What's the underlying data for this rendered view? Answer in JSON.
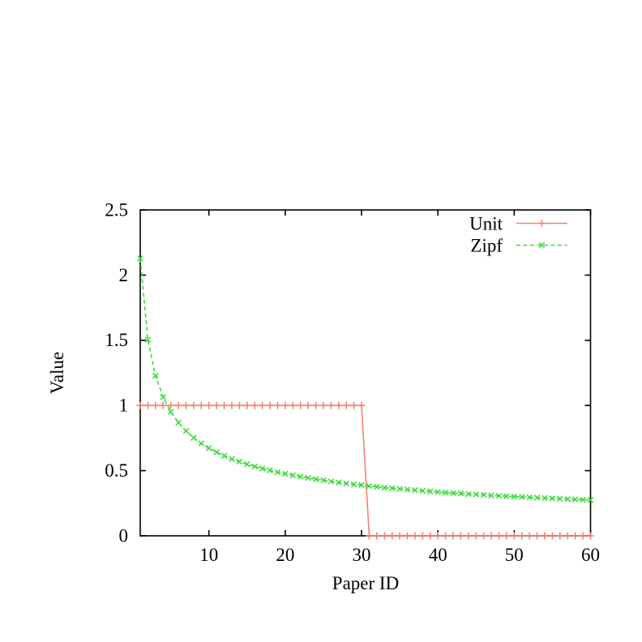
{
  "chart_data": {
    "type": "line",
    "title": "",
    "xlabel": "Paper ID",
    "ylabel": "Value",
    "xlim": [
      1,
      60
    ],
    "ylim": [
      0,
      2.5
    ],
    "xticks": [
      "10",
      "20",
      "30",
      "40",
      "50",
      "60"
    ],
    "yticks": [
      "0",
      "0.5",
      "1",
      "1.5",
      "2",
      "2.5"
    ],
    "xtick_values": [
      10,
      20,
      30,
      40,
      50,
      60
    ],
    "ytick_values": [
      0,
      0.5,
      1,
      1.5,
      2,
      2.5
    ],
    "grid": false,
    "legend_position": "top-right-inside",
    "axis_color": "#000000",
    "background_color": "#ffffff",
    "x": [
      1,
      2,
      3,
      4,
      5,
      6,
      7,
      8,
      9,
      10,
      11,
      12,
      13,
      14,
      15,
      16,
      17,
      18,
      19,
      20,
      21,
      22,
      23,
      24,
      25,
      26,
      27,
      28,
      29,
      30,
      31,
      32,
      33,
      34,
      35,
      36,
      37,
      38,
      39,
      40,
      41,
      42,
      43,
      44,
      45,
      46,
      47,
      48,
      49,
      50,
      51,
      52,
      53,
      54,
      55,
      56,
      57,
      58,
      59,
      60
    ],
    "series": [
      {
        "name": "Unit",
        "color": "#f8806e",
        "line_style": "solid",
        "marker": "plus",
        "values": [
          1,
          1,
          1,
          1,
          1,
          1,
          1,
          1,
          1,
          1,
          1,
          1,
          1,
          1,
          1,
          1,
          1,
          1,
          1,
          1,
          1,
          1,
          1,
          1,
          1,
          1,
          1,
          1,
          1,
          1,
          0,
          0,
          0,
          0,
          0,
          0,
          0,
          0,
          0,
          0,
          0,
          0,
          0,
          0,
          0,
          0,
          0,
          0,
          0,
          0,
          0,
          0,
          0,
          0,
          0,
          0,
          0,
          0,
          0,
          0
        ]
      },
      {
        "name": "Zipf",
        "color": "#3cdc3c",
        "line_style": "dashed",
        "marker": "x",
        "values": [
          2.128,
          1.505,
          1.229,
          1.064,
          0.952,
          0.869,
          0.804,
          0.752,
          0.709,
          0.673,
          0.642,
          0.614,
          0.59,
          0.569,
          0.549,
          0.532,
          0.516,
          0.502,
          0.488,
          0.476,
          0.464,
          0.454,
          0.444,
          0.434,
          0.426,
          0.417,
          0.41,
          0.402,
          0.395,
          0.389,
          0.382,
          0.376,
          0.37,
          0.365,
          0.36,
          0.355,
          0.35,
          0.345,
          0.341,
          0.336,
          0.332,
          0.328,
          0.325,
          0.321,
          0.317,
          0.314,
          0.31,
          0.307,
          0.304,
          0.301,
          0.298,
          0.295,
          0.292,
          0.29,
          0.287,
          0.284,
          0.282,
          0.279,
          0.277,
          0.275
        ]
      }
    ]
  }
}
